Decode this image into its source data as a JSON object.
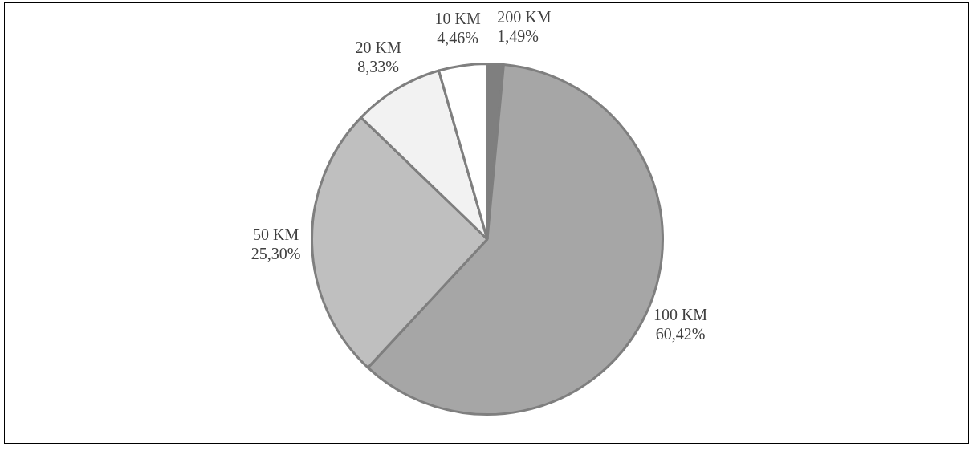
{
  "chart_data": {
    "type": "pie",
    "categories": [
      "200 KM",
      "100 KM",
      "50 KM",
      "20 KM",
      "10 KM"
    ],
    "values": [
      1.49,
      60.42,
      25.3,
      8.33,
      4.46
    ],
    "value_labels": [
      "1,49%",
      "60,42%",
      "25,30%",
      "8,33%",
      "4,46%"
    ],
    "colors": [
      "#7f7f7f",
      "#a6a6a6",
      "#bfbfbf",
      "#f2f2f2",
      "#ffffff"
    ],
    "legend": false
  }
}
